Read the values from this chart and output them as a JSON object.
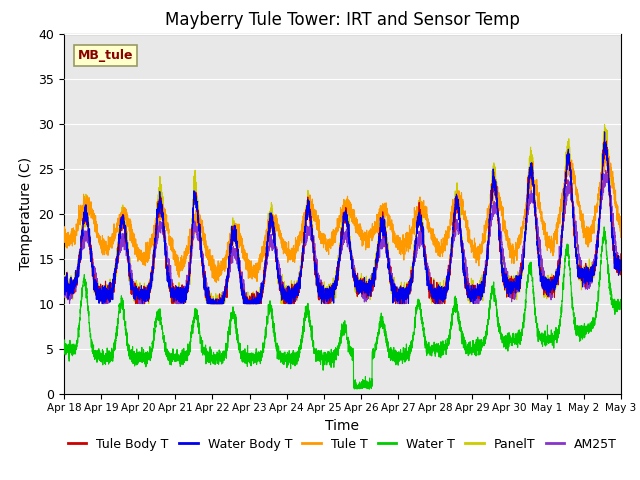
{
  "title": "Mayberry Tule Tower: IRT and Sensor Temp",
  "xlabel": "Time",
  "ylabel": "Temperature (C)",
  "ylim": [
    0,
    40
  ],
  "x_tick_labels": [
    "Apr 18",
    "Apr 19",
    "Apr 20",
    "Apr 21",
    "Apr 22",
    "Apr 23",
    "Apr 24",
    "Apr 25",
    "Apr 26",
    "Apr 27",
    "Apr 28",
    "Apr 29",
    "Apr 30",
    "May 1",
    "May 2",
    "May 3"
  ],
  "series_colors": {
    "Tule Body T": "#cc0000",
    "Water Body T": "#0000ee",
    "Tule T": "#ff9900",
    "Water T": "#00cc00",
    "PanelT": "#cccc00",
    "AM25T": "#8833cc"
  },
  "label_box": "MB_tule",
  "label_box_color": "#ffffcc",
  "label_box_text_color": "#880000",
  "bg_color": "#e8e8e8",
  "title_fontsize": 12,
  "axis_fontsize": 10,
  "legend_fontsize": 9,
  "n_days": 15,
  "pts_per_day": 288
}
